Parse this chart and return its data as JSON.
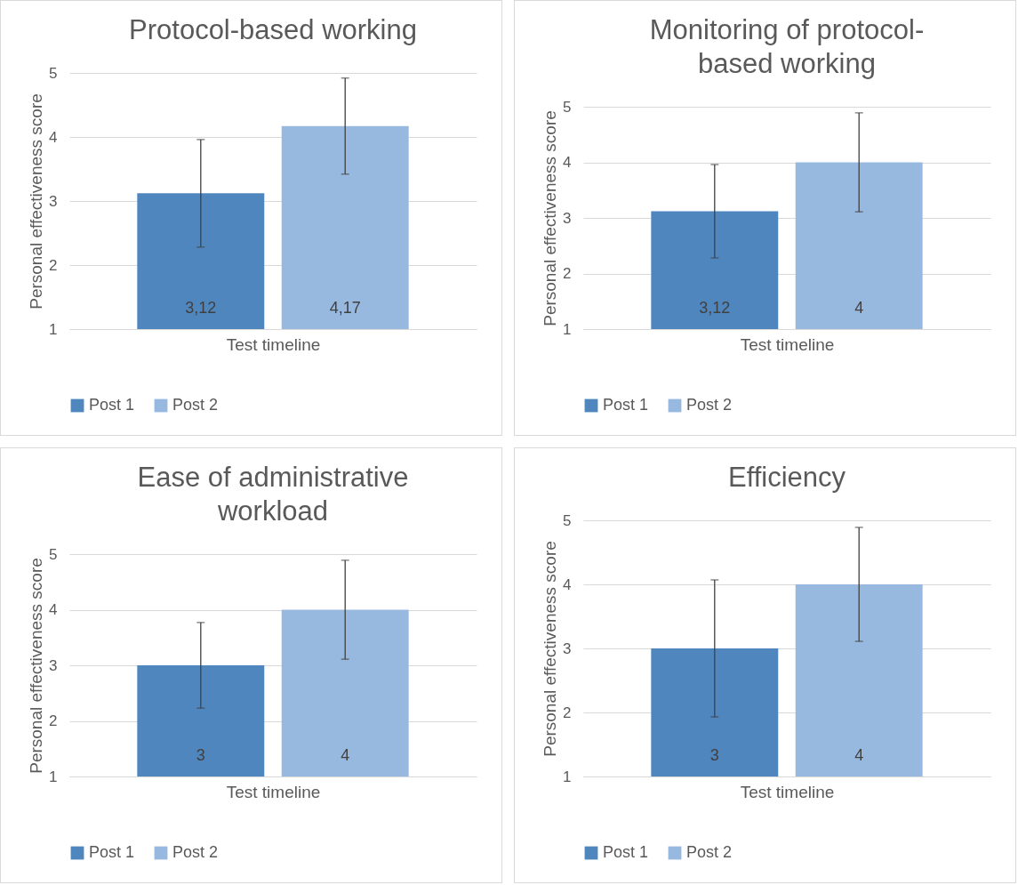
{
  "chart_data": [
    {
      "type": "bar",
      "title": "Protocol-based working",
      "xlabel": "Test timeline",
      "ylabel": "Personal effectiveness score",
      "categories": [
        null
      ],
      "ylim": [
        1,
        5
      ],
      "yticks": [
        1,
        2,
        3,
        4,
        5
      ],
      "grid": "y",
      "legend": "bottom",
      "series": [
        {
          "name": "Post 1",
          "color": "#4f86be",
          "values": [
            3.12
          ],
          "errors": [
            0.84
          ],
          "value_labels": [
            "3,12"
          ]
        },
        {
          "name": "Post 2",
          "color": "#98b9df",
          "values": [
            4.17
          ],
          "errors": [
            0.75
          ],
          "value_labels": [
            "4,17"
          ]
        }
      ]
    },
    {
      "type": "bar",
      "title": "Monitoring of protocol-based working",
      "xlabel": "Test timeline",
      "ylabel": "Personal effectiveness score",
      "categories": [
        null
      ],
      "ylim": [
        1,
        5
      ],
      "yticks": [
        1,
        2,
        3,
        4,
        5
      ],
      "grid": "y",
      "legend": "bottom",
      "series": [
        {
          "name": "Post 1",
          "color": "#4f86be",
          "values": [
            3.12
          ],
          "errors": [
            0.84
          ],
          "value_labels": [
            "3,12"
          ]
        },
        {
          "name": "Post 2",
          "color": "#98b9df",
          "values": [
            4
          ],
          "errors": [
            0.89
          ],
          "value_labels": [
            "4"
          ]
        }
      ]
    },
    {
      "type": "bar",
      "title": "Ease of administrative workload",
      "xlabel": "Test timeline",
      "ylabel": "Personal effectiveness score",
      "categories": [
        null
      ],
      "ylim": [
        1,
        5
      ],
      "yticks": [
        1,
        2,
        3,
        4,
        5
      ],
      "grid": "y",
      "legend": "bottom",
      "series": [
        {
          "name": "Post 1",
          "color": "#4f86be",
          "values": [
            3
          ],
          "errors": [
            0.77
          ],
          "value_labels": [
            "3"
          ]
        },
        {
          "name": "Post 2",
          "color": "#98b9df",
          "values": [
            4
          ],
          "errors": [
            0.89
          ],
          "value_labels": [
            "4"
          ]
        }
      ]
    },
    {
      "type": "bar",
      "title": "Efficiency",
      "xlabel": "Test timeline",
      "ylabel": "Personal effectiveness score",
      "categories": [
        null
      ],
      "ylim": [
        1,
        5
      ],
      "yticks": [
        1,
        2,
        3,
        4,
        5
      ],
      "grid": "y",
      "legend": "bottom",
      "series": [
        {
          "name": "Post 1",
          "color": "#4f86be",
          "values": [
            3
          ],
          "errors": [
            1.07
          ],
          "value_labels": [
            "3"
          ]
        },
        {
          "name": "Post 2",
          "color": "#98b9df",
          "values": [
            4
          ],
          "errors": [
            0.89
          ],
          "value_labels": [
            "4"
          ]
        }
      ]
    }
  ]
}
